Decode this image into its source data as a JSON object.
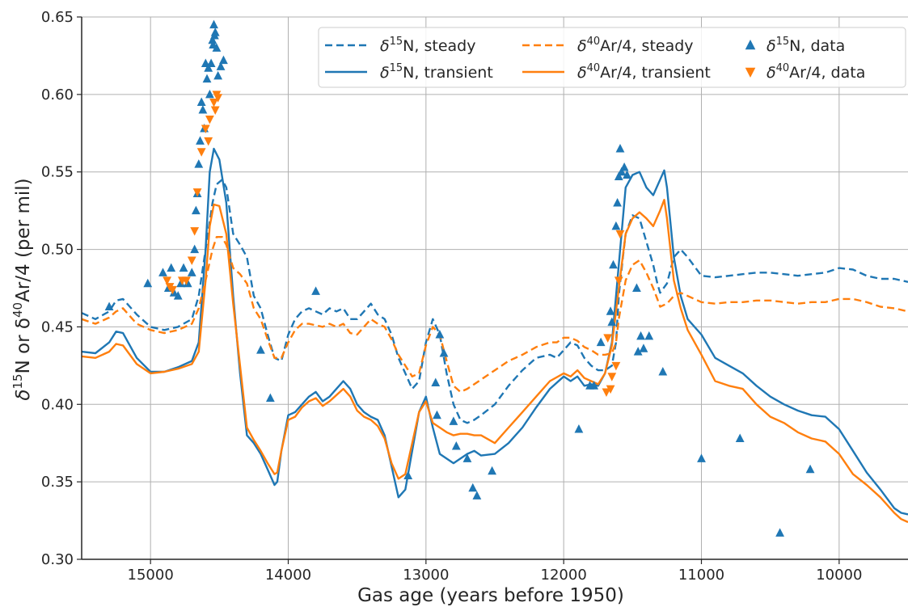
{
  "chart_data": {
    "type": "line",
    "xlabel": "Gas age (years before 1950)",
    "ylabel_main": "δ",
    "ylabel_sup1": "15",
    "ylabel_mid": "N or δ",
    "ylabel_sup2": "40",
    "ylabel_end": "Ar/4 (per mil)",
    "xlim": [
      15500,
      9500
    ],
    "ylim": [
      0.3,
      0.65
    ],
    "x_reversed": true,
    "grid": true,
    "legend_position": "top-right",
    "x_ticks": [
      15000,
      14000,
      13000,
      12000,
      11000,
      10000
    ],
    "x_tick_labels": [
      "15000",
      "14000",
      "13000",
      "12000",
      "11000",
      "10000"
    ],
    "y_ticks": [
      0.3,
      0.35,
      0.4,
      0.45,
      0.5,
      0.55,
      0.6,
      0.65
    ],
    "y_tick_labels": [
      "0.30",
      "0.35",
      "0.40",
      "0.45",
      "0.50",
      "0.55",
      "0.60",
      "0.65"
    ],
    "colors": {
      "n15": "#1f77b4",
      "ar40": "#ff7f0e"
    },
    "legend": [
      {
        "base": "δ",
        "sup": "15",
        "rest": "N, steady",
        "kind": "dashed",
        "color": "#1f77b4"
      },
      {
        "base": "δ",
        "sup": "15",
        "rest": "N, transient",
        "kind": "solid",
        "color": "#1f77b4"
      },
      {
        "base": "δ",
        "sup": "40",
        "rest": "Ar/4, steady",
        "kind": "dashed",
        "color": "#ff7f0e"
      },
      {
        "base": "δ",
        "sup": "40",
        "rest": "Ar/4, transient",
        "kind": "solid",
        "color": "#ff7f0e"
      },
      {
        "base": "δ",
        "sup": "15",
        "rest": "N, data",
        "kind": "triangle-up",
        "color": "#1f77b4"
      },
      {
        "base": "δ",
        "sup": "40",
        "rest": "Ar/4, data",
        "kind": "triangle-down",
        "color": "#ff7f0e"
      }
    ],
    "series": [
      {
        "name": "δ15N, steady",
        "style": "dashed",
        "color": "#1f77b4",
        "x": [
          15500,
          15400,
          15300,
          15250,
          15200,
          15100,
          15000,
          14900,
          14800,
          14700,
          14650,
          14600,
          14550,
          14520,
          14480,
          14450,
          14400,
          14350,
          14300,
          14250,
          14200,
          14150,
          14100,
          14050,
          14000,
          13950,
          13900,
          13850,
          13800,
          13750,
          13700,
          13650,
          13600,
          13550,
          13500,
          13450,
          13400,
          13350,
          13300,
          13250,
          13200,
          13150,
          13100,
          13050,
          13000,
          12950,
          12900,
          12850,
          12800,
          12750,
          12700,
          12650,
          12600,
          12500,
          12400,
          12300,
          12200,
          12100,
          12050,
          12000,
          11950,
          11900,
          11850,
          11800,
          11750,
          11700,
          11650,
          11620,
          11600,
          11570,
          11550,
          11500,
          11450,
          11400,
          11350,
          11320,
          11300,
          11250,
          11200,
          11150,
          11100,
          11000,
          10900,
          10800,
          10700,
          10600,
          10500,
          10400,
          10300,
          10200,
          10100,
          10000,
          9900,
          9800,
          9700,
          9600,
          9500
        ],
        "y": [
          0.459,
          0.455,
          0.46,
          0.467,
          0.468,
          0.458,
          0.45,
          0.448,
          0.45,
          0.455,
          0.47,
          0.5,
          0.53,
          0.542,
          0.545,
          0.54,
          0.51,
          0.503,
          0.495,
          0.47,
          0.462,
          0.445,
          0.43,
          0.428,
          0.445,
          0.455,
          0.46,
          0.462,
          0.46,
          0.458,
          0.462,
          0.46,
          0.462,
          0.455,
          0.455,
          0.46,
          0.465,
          0.458,
          0.455,
          0.445,
          0.43,
          0.42,
          0.41,
          0.415,
          0.44,
          0.455,
          0.445,
          0.42,
          0.4,
          0.39,
          0.388,
          0.39,
          0.393,
          0.4,
          0.412,
          0.422,
          0.43,
          0.432,
          0.43,
          0.435,
          0.44,
          0.438,
          0.43,
          0.425,
          0.422,
          0.422,
          0.425,
          0.44,
          0.47,
          0.495,
          0.51,
          0.522,
          0.52,
          0.505,
          0.49,
          0.478,
          0.472,
          0.478,
          0.495,
          0.5,
          0.495,
          0.483,
          0.482,
          0.483,
          0.484,
          0.485,
          0.485,
          0.484,
          0.483,
          0.484,
          0.485,
          0.488,
          0.487,
          0.483,
          0.481,
          0.481,
          0.479
        ]
      },
      {
        "name": "δ15N, transient",
        "style": "solid",
        "color": "#1f77b4",
        "x": [
          15500,
          15400,
          15300,
          15250,
          15200,
          15100,
          15000,
          14900,
          14800,
          14700,
          14650,
          14600,
          14570,
          14540,
          14500,
          14450,
          14400,
          14350,
          14300,
          14250,
          14200,
          14150,
          14100,
          14080,
          14050,
          14000,
          13950,
          13900,
          13850,
          13800,
          13750,
          13700,
          13650,
          13600,
          13550,
          13500,
          13450,
          13400,
          13350,
          13300,
          13250,
          13200,
          13150,
          13100,
          13050,
          13000,
          12950,
          12900,
          12850,
          12800,
          12750,
          12700,
          12650,
          12600,
          12500,
          12400,
          12300,
          12200,
          12100,
          12000,
          11950,
          11900,
          11850,
          11800,
          11750,
          11700,
          11650,
          11600,
          11550,
          11500,
          11450,
          11400,
          11350,
          11300,
          11270,
          11250,
          11200,
          11150,
          11100,
          11000,
          10900,
          10800,
          10700,
          10600,
          10500,
          10400,
          10300,
          10200,
          10100,
          10000,
          9900,
          9800,
          9700,
          9600,
          9550,
          9500
        ],
        "y": [
          0.434,
          0.433,
          0.44,
          0.447,
          0.446,
          0.43,
          0.421,
          0.421,
          0.424,
          0.428,
          0.44,
          0.5,
          0.55,
          0.565,
          0.558,
          0.53,
          0.47,
          0.42,
          0.38,
          0.375,
          0.368,
          0.358,
          0.348,
          0.35,
          0.37,
          0.393,
          0.395,
          0.4,
          0.405,
          0.408,
          0.402,
          0.405,
          0.41,
          0.415,
          0.41,
          0.4,
          0.395,
          0.392,
          0.39,
          0.38,
          0.36,
          0.34,
          0.345,
          0.37,
          0.395,
          0.405,
          0.385,
          0.368,
          0.365,
          0.362,
          0.365,
          0.368,
          0.37,
          0.367,
          0.368,
          0.375,
          0.385,
          0.398,
          0.41,
          0.418,
          0.415,
          0.418,
          0.412,
          0.413,
          0.412,
          0.42,
          0.44,
          0.49,
          0.54,
          0.548,
          0.55,
          0.54,
          0.535,
          0.545,
          0.551,
          0.54,
          0.495,
          0.47,
          0.455,
          0.445,
          0.43,
          0.425,
          0.42,
          0.412,
          0.405,
          0.4,
          0.396,
          0.393,
          0.392,
          0.384,
          0.37,
          0.356,
          0.345,
          0.333,
          0.33,
          0.329
        ]
      },
      {
        "name": "δ40Ar/4, steady",
        "style": "dashed",
        "color": "#ff7f0e",
        "x": [
          15500,
          15400,
          15300,
          15250,
          15200,
          15100,
          15000,
          14900,
          14800,
          14700,
          14650,
          14600,
          14550,
          14520,
          14480,
          14450,
          14400,
          14350,
          14300,
          14250,
          14200,
          14150,
          14100,
          14050,
          14000,
          13950,
          13900,
          13850,
          13800,
          13750,
          13700,
          13650,
          13600,
          13550,
          13500,
          13450,
          13400,
          13350,
          13300,
          13250,
          13200,
          13150,
          13100,
          13050,
          13000,
          12950,
          12900,
          12850,
          12800,
          12750,
          12700,
          12650,
          12600,
          12500,
          12400,
          12300,
          12200,
          12100,
          12050,
          12000,
          11950,
          11900,
          11850,
          11800,
          11750,
          11700,
          11650,
          11620,
          11600,
          11570,
          11550,
          11500,
          11450,
          11400,
          11350,
          11320,
          11300,
          11250,
          11200,
          11150,
          11100,
          11000,
          10900,
          10800,
          10700,
          10600,
          10500,
          10400,
          10300,
          10200,
          10100,
          10000,
          9900,
          9800,
          9700,
          9600,
          9500
        ],
        "y": [
          0.455,
          0.452,
          0.456,
          0.46,
          0.462,
          0.452,
          0.448,
          0.446,
          0.448,
          0.452,
          0.462,
          0.48,
          0.5,
          0.508,
          0.508,
          0.503,
          0.488,
          0.484,
          0.478,
          0.462,
          0.455,
          0.442,
          0.43,
          0.43,
          0.44,
          0.448,
          0.452,
          0.452,
          0.451,
          0.45,
          0.452,
          0.45,
          0.452,
          0.446,
          0.445,
          0.45,
          0.455,
          0.452,
          0.45,
          0.442,
          0.432,
          0.425,
          0.418,
          0.42,
          0.438,
          0.45,
          0.445,
          0.428,
          0.412,
          0.408,
          0.41,
          0.413,
          0.416,
          0.422,
          0.428,
          0.432,
          0.437,
          0.44,
          0.44,
          0.443,
          0.443,
          0.441,
          0.437,
          0.435,
          0.432,
          0.432,
          0.433,
          0.44,
          0.455,
          0.47,
          0.48,
          0.49,
          0.493,
          0.485,
          0.475,
          0.468,
          0.463,
          0.465,
          0.47,
          0.472,
          0.47,
          0.466,
          0.465,
          0.466,
          0.466,
          0.467,
          0.467,
          0.466,
          0.465,
          0.466,
          0.466,
          0.468,
          0.468,
          0.466,
          0.463,
          0.462,
          0.46
        ]
      },
      {
        "name": "δ40Ar/4, transient",
        "style": "solid",
        "color": "#ff7f0e",
        "x": [
          15500,
          15400,
          15300,
          15250,
          15200,
          15100,
          15000,
          14900,
          14800,
          14700,
          14650,
          14600,
          14570,
          14540,
          14500,
          14450,
          14400,
          14350,
          14300,
          14250,
          14200,
          14150,
          14100,
          14080,
          14050,
          14000,
          13950,
          13900,
          13850,
          13800,
          13750,
          13700,
          13650,
          13600,
          13550,
          13500,
          13450,
          13400,
          13350,
          13300,
          13250,
          13200,
          13150,
          13100,
          13050,
          13000,
          12950,
          12900,
          12850,
          12800,
          12750,
          12700,
          12650,
          12600,
          12500,
          12400,
          12300,
          12200,
          12100,
          12000,
          11950,
          11900,
          11850,
          11800,
          11750,
          11700,
          11650,
          11600,
          11550,
          11500,
          11450,
          11400,
          11350,
          11300,
          11270,
          11250,
          11200,
          11150,
          11100,
          11000,
          10900,
          10800,
          10700,
          10600,
          10500,
          10400,
          10300,
          10200,
          10100,
          10000,
          9900,
          9800,
          9700,
          9600,
          9550,
          9500
        ],
        "y": [
          0.431,
          0.43,
          0.434,
          0.439,
          0.438,
          0.426,
          0.42,
          0.421,
          0.423,
          0.426,
          0.434,
          0.48,
          0.515,
          0.529,
          0.528,
          0.51,
          0.465,
          0.425,
          0.385,
          0.377,
          0.37,
          0.362,
          0.355,
          0.356,
          0.37,
          0.39,
          0.392,
          0.398,
          0.402,
          0.404,
          0.399,
          0.402,
          0.406,
          0.41,
          0.405,
          0.396,
          0.392,
          0.39,
          0.386,
          0.378,
          0.362,
          0.352,
          0.355,
          0.375,
          0.395,
          0.402,
          0.388,
          0.385,
          0.382,
          0.38,
          0.381,
          0.381,
          0.38,
          0.38,
          0.375,
          0.385,
          0.395,
          0.405,
          0.415,
          0.42,
          0.418,
          0.422,
          0.417,
          0.415,
          0.413,
          0.42,
          0.438,
          0.475,
          0.51,
          0.52,
          0.524,
          0.52,
          0.515,
          0.525,
          0.532,
          0.52,
          0.48,
          0.462,
          0.448,
          0.432,
          0.415,
          0.412,
          0.41,
          0.4,
          0.392,
          0.388,
          0.382,
          0.378,
          0.376,
          0.368,
          0.355,
          0.348,
          0.34,
          0.33,
          0.326,
          0.324
        ]
      },
      {
        "name": "δ15N, data",
        "style": "triangle-up",
        "color": "#1f77b4",
        "x": [
          15300,
          15020,
          14910,
          14870,
          14850,
          14830,
          14800,
          14780,
          14760,
          14730,
          14700,
          14680,
          14670,
          14660,
          14650,
          14640,
          14630,
          14620,
          14610,
          14600,
          14590,
          14580,
          14570,
          14560,
          14550,
          14545,
          14540,
          14535,
          14530,
          14520,
          14510,
          14490,
          14470,
          14130,
          13800,
          14200,
          13130,
          12930,
          12920,
          12900,
          12870,
          12800,
          12780,
          12700,
          12660,
          12630,
          12520,
          11890,
          11810,
          11780,
          11730,
          11660,
          11650,
          11640,
          11620,
          11610,
          11600,
          11590,
          11580,
          11560,
          11540,
          11470,
          11460,
          11440,
          11420,
          11380,
          11280,
          11000,
          10720,
          10430,
          10210
        ],
        "y": [
          0.463,
          0.478,
          0.485,
          0.475,
          0.488,
          0.472,
          0.47,
          0.478,
          0.488,
          0.478,
          0.485,
          0.5,
          0.525,
          0.536,
          0.555,
          0.57,
          0.595,
          0.59,
          0.578,
          0.62,
          0.61,
          0.617,
          0.6,
          0.62,
          0.635,
          0.632,
          0.645,
          0.638,
          0.64,
          0.63,
          0.612,
          0.618,
          0.622,
          0.404,
          0.473,
          0.435,
          0.354,
          0.414,
          0.393,
          0.445,
          0.433,
          0.389,
          0.373,
          0.365,
          0.346,
          0.341,
          0.357,
          0.384,
          0.412,
          0.412,
          0.44,
          0.46,
          0.453,
          0.49,
          0.515,
          0.53,
          0.547,
          0.565,
          0.55,
          0.553,
          0.548,
          0.475,
          0.434,
          0.444,
          0.436,
          0.444,
          0.421,
          0.365,
          0.378,
          0.317,
          0.358
        ]
      },
      {
        "name": "δ40Ar/4, data",
        "style": "triangle-down",
        "color": "#ff7f0e",
        "x": [
          14880,
          14860,
          14840,
          14770,
          14740,
          14700,
          14680,
          14660,
          14630,
          14600,
          14580,
          14570,
          14540,
          14530,
          14520,
          14510,
          11690,
          11680,
          11660,
          11650,
          11620,
          11600,
          11590
        ],
        "y": [
          0.48,
          0.476,
          0.474,
          0.48,
          0.48,
          0.493,
          0.512,
          0.537,
          0.563,
          0.578,
          0.57,
          0.584,
          0.595,
          0.59,
          0.6,
          0.598,
          0.408,
          0.443,
          0.41,
          0.418,
          0.425,
          0.48,
          0.51
        ]
      }
    ]
  }
}
